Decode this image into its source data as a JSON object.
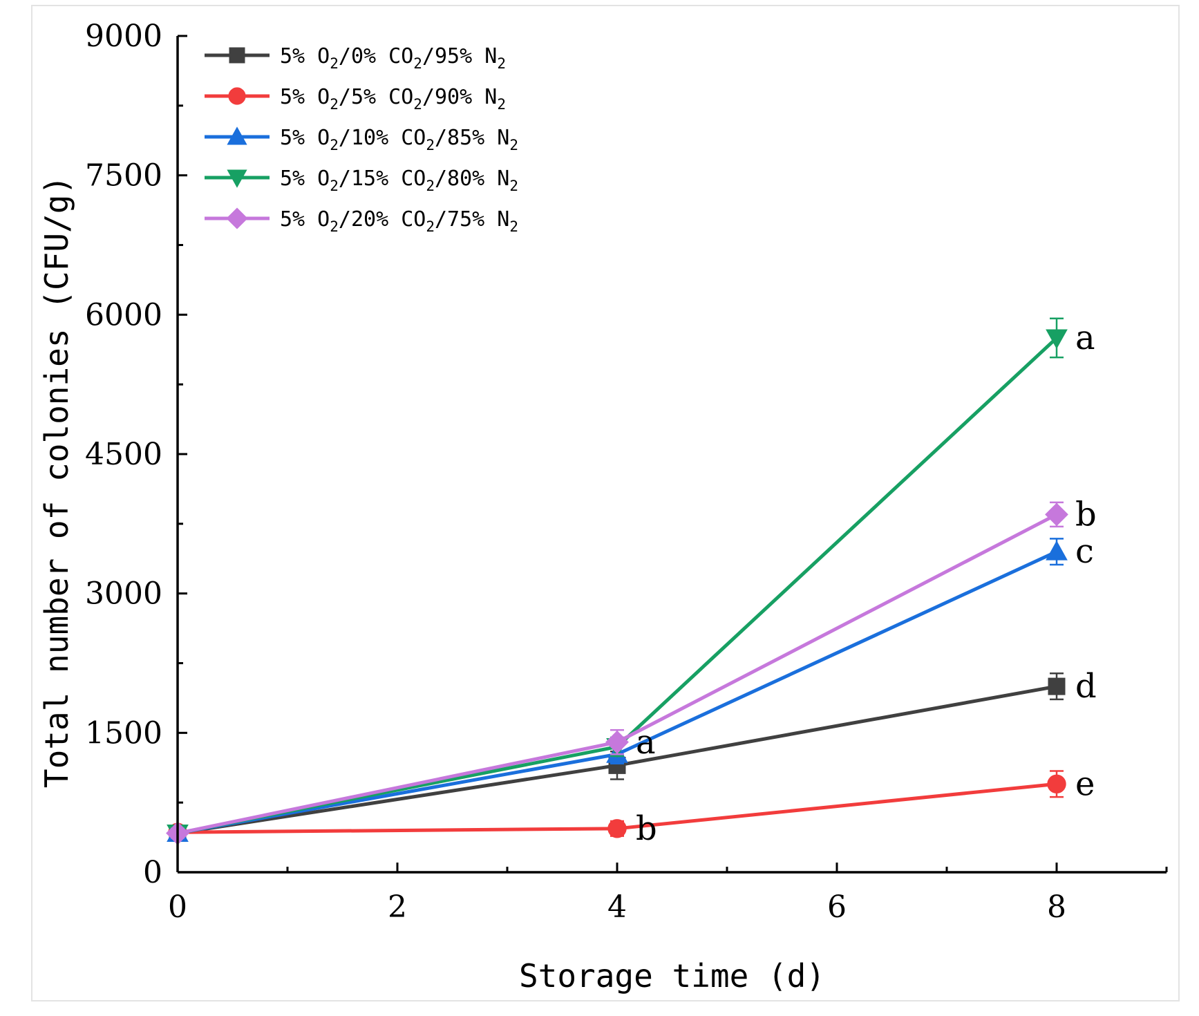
{
  "chart_data": {
    "type": "line",
    "title": "",
    "xlabel": "Storage time (d)",
    "ylabel": "Total number of colonies (CFU/g)",
    "xlim": [
      0,
      9
    ],
    "ylim": [
      0,
      9000
    ],
    "xticks": [
      0,
      2,
      4,
      6,
      8
    ],
    "yticks": [
      0,
      1500,
      3000,
      4500,
      6000,
      7500,
      9000
    ],
    "x": [
      0,
      4,
      8
    ],
    "legend_position": "top-left",
    "series": [
      {
        "name": "5% O2/0% CO2/95% N2",
        "legend": {
          "a": "5% O",
          "s1": "2",
          "b": "/0% CO",
          "s2": "2",
          "c": "/95% N",
          "s3": "2"
        },
        "color": "#404040",
        "marker": "square",
        "values": [
          420,
          1150,
          2000
        ],
        "errors": [
          60,
          150,
          140
        ],
        "labels": [
          "",
          "",
          "d"
        ]
      },
      {
        "name": "5% O2/5% CO2/90% N2",
        "legend": {
          "a": "5% O",
          "s1": "2",
          "b": "/5% CO",
          "s2": "2",
          "c": "/90% N",
          "s3": "2"
        },
        "color": "#f23c3c",
        "marker": "circle",
        "values": [
          430,
          470,
          950
        ],
        "errors": [
          50,
          80,
          140
        ],
        "labels": [
          "",
          "b",
          "e"
        ]
      },
      {
        "name": "5% O2/10% CO2/85% N2",
        "legend": {
          "a": "5% O",
          "s1": "2",
          "b": "/10% CO",
          "s2": "2",
          "c": "/85% N",
          "s3": "2"
        },
        "color": "#1a6fdc",
        "marker": "triangle-up",
        "values": [
          420,
          1270,
          3450
        ],
        "errors": [
          50,
          100,
          140
        ],
        "labels": [
          "",
          "",
          "c"
        ]
      },
      {
        "name": "5% O2/15% CO2/80% N2",
        "legend": {
          "a": "5% O",
          "s1": "2",
          "b": "/15% CO",
          "s2": "2",
          "c": "/80% N",
          "s3": "2"
        },
        "color": "#17a063",
        "marker": "triangle-down",
        "values": [
          420,
          1350,
          5750
        ],
        "errors": [
          50,
          100,
          210
        ],
        "labels": [
          "",
          "",
          "a"
        ]
      },
      {
        "name": "5% O2/20% CO2/75% N2",
        "legend": {
          "a": "5% O",
          "s1": "2",
          "b": "/20% CO",
          "s2": "2",
          "c": "/75% N",
          "s3": "2"
        },
        "color": "#c678dc",
        "marker": "diamond",
        "values": [
          420,
          1400,
          3850
        ],
        "errors": [
          50,
          130,
          130
        ],
        "labels": [
          "",
          "a",
          "b"
        ]
      }
    ]
  }
}
